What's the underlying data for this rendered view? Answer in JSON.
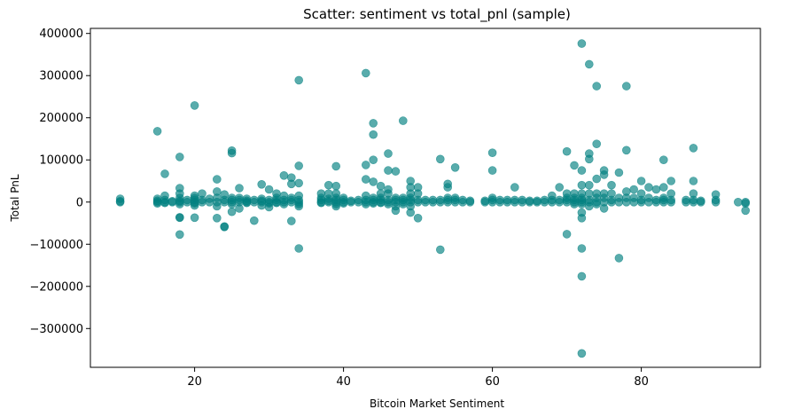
{
  "chart_data": {
    "type": "scatter",
    "title": "Scatter: sentiment vs total_pnl (sample)",
    "xlabel": "Bitcoin Market Sentiment",
    "ylabel": "Total PnL",
    "xlim": [
      6,
      96
    ],
    "ylim": [
      -392000,
      412000
    ],
    "xticks": [
      20,
      40,
      60,
      80
    ],
    "yticks": [
      -300000,
      -200000,
      -100000,
      0,
      100000,
      200000,
      300000,
      400000
    ],
    "xtick_labels": [
      "20",
      "40",
      "60",
      "80"
    ],
    "ytick_labels": [
      "−300000",
      "−200000",
      "−100000",
      "0",
      "100000",
      "200000",
      "300000",
      "400000"
    ],
    "grid": false,
    "point_color": "#008080",
    "point_alpha": 0.65,
    "points": [
      [
        10,
        8000
      ],
      [
        10,
        2000
      ],
      [
        10,
        0
      ],
      [
        15,
        168000
      ],
      [
        15,
        8000
      ],
      [
        15,
        3000
      ],
      [
        15,
        0
      ],
      [
        15,
        -3000
      ],
      [
        16,
        67000
      ],
      [
        16,
        15000
      ],
      [
        16,
        5000
      ],
      [
        16,
        0
      ],
      [
        16,
        -2000
      ],
      [
        17,
        2000
      ],
      [
        17,
        0
      ],
      [
        18,
        107000
      ],
      [
        18,
        33000
      ],
      [
        18,
        20000
      ],
      [
        18,
        10000
      ],
      [
        18,
        3000
      ],
      [
        18,
        0
      ],
      [
        18,
        -5000
      ],
      [
        18,
        -36000
      ],
      [
        18,
        -37000
      ],
      [
        18,
        -77000
      ],
      [
        19,
        5000
      ],
      [
        19,
        0
      ],
      [
        20,
        229000
      ],
      [
        20,
        15000
      ],
      [
        20,
        10000
      ],
      [
        20,
        5000
      ],
      [
        20,
        0
      ],
      [
        20,
        -3000
      ],
      [
        20,
        -8000
      ],
      [
        20,
        -37000
      ],
      [
        21,
        20000
      ],
      [
        21,
        5000
      ],
      [
        21,
        0
      ],
      [
        22,
        8000
      ],
      [
        22,
        0
      ],
      [
        23,
        54000
      ],
      [
        23,
        25000
      ],
      [
        23,
        10000
      ],
      [
        23,
        0
      ],
      [
        23,
        -10000
      ],
      [
        23,
        -38000
      ],
      [
        24,
        18000
      ],
      [
        24,
        5000
      ],
      [
        24,
        0
      ],
      [
        24,
        -58000
      ],
      [
        24,
        -59000
      ],
      [
        25,
        122000
      ],
      [
        25,
        116000
      ],
      [
        25,
        10000
      ],
      [
        25,
        5000
      ],
      [
        25,
        0
      ],
      [
        25,
        -5000
      ],
      [
        25,
        -23000
      ],
      [
        26,
        33000
      ],
      [
        26,
        10000
      ],
      [
        26,
        5000
      ],
      [
        26,
        0
      ],
      [
        26,
        -15000
      ],
      [
        27,
        8000
      ],
      [
        27,
        3000
      ],
      [
        27,
        0
      ],
      [
        27,
        -2000
      ],
      [
        28,
        5000
      ],
      [
        28,
        0
      ],
      [
        28,
        -44000
      ],
      [
        29,
        42000
      ],
      [
        29,
        8000
      ],
      [
        29,
        3000
      ],
      [
        29,
        0
      ],
      [
        29,
        -8000
      ],
      [
        30,
        30000
      ],
      [
        30,
        5000
      ],
      [
        30,
        0
      ],
      [
        30,
        -3000
      ],
      [
        30,
        -12000
      ],
      [
        31,
        20000
      ],
      [
        31,
        10000
      ],
      [
        31,
        5000
      ],
      [
        31,
        0
      ],
      [
        31,
        -2000
      ],
      [
        32,
        63000
      ],
      [
        32,
        15000
      ],
      [
        32,
        5000
      ],
      [
        32,
        0
      ],
      [
        32,
        -5000
      ],
      [
        33,
        58000
      ],
      [
        33,
        43000
      ],
      [
        33,
        10000
      ],
      [
        33,
        5000
      ],
      [
        33,
        0
      ],
      [
        33,
        -45000
      ],
      [
        34,
        289000
      ],
      [
        34,
        86000
      ],
      [
        34,
        45000
      ],
      [
        34,
        15000
      ],
      [
        34,
        5000
      ],
      [
        34,
        0
      ],
      [
        34,
        -5000
      ],
      [
        34,
        -10000
      ],
      [
        34,
        -110000
      ],
      [
        37,
        20000
      ],
      [
        37,
        10000
      ],
      [
        37,
        5000
      ],
      [
        37,
        0
      ],
      [
        37,
        -2000
      ],
      [
        38,
        40000
      ],
      [
        38,
        20000
      ],
      [
        38,
        8000
      ],
      [
        38,
        3000
      ],
      [
        38,
        0
      ],
      [
        39,
        85000
      ],
      [
        39,
        38000
      ],
      [
        39,
        20000
      ],
      [
        39,
        10000
      ],
      [
        39,
        5000
      ],
      [
        39,
        0
      ],
      [
        39,
        -5000
      ],
      [
        39,
        -10000
      ],
      [
        40,
        10000
      ],
      [
        40,
        5000
      ],
      [
        40,
        0
      ],
      [
        40,
        -3000
      ],
      [
        41,
        3000
      ],
      [
        41,
        0
      ],
      [
        42,
        5000
      ],
      [
        42,
        0
      ],
      [
        43,
        306000
      ],
      [
        43,
        88000
      ],
      [
        43,
        54000
      ],
      [
        43,
        15000
      ],
      [
        43,
        5000
      ],
      [
        43,
        0
      ],
      [
        43,
        -5000
      ],
      [
        44,
        187000
      ],
      [
        44,
        160000
      ],
      [
        44,
        100000
      ],
      [
        44,
        48000
      ],
      [
        44,
        10000
      ],
      [
        44,
        5000
      ],
      [
        44,
        0
      ],
      [
        44,
        -3000
      ],
      [
        45,
        38000
      ],
      [
        45,
        20000
      ],
      [
        45,
        10000
      ],
      [
        45,
        5000
      ],
      [
        45,
        0
      ],
      [
        45,
        -2000
      ],
      [
        46,
        115000
      ],
      [
        46,
        75000
      ],
      [
        46,
        30000
      ],
      [
        46,
        20000
      ],
      [
        46,
        5000
      ],
      [
        46,
        0
      ],
      [
        46,
        -5000
      ],
      [
        47,
        73000
      ],
      [
        47,
        10000
      ],
      [
        47,
        5000
      ],
      [
        47,
        0
      ],
      [
        47,
        -10000
      ],
      [
        47,
        -20000
      ],
      [
        48,
        193000
      ],
      [
        48,
        10000
      ],
      [
        48,
        5000
      ],
      [
        48,
        0
      ],
      [
        48,
        -5000
      ],
      [
        49,
        50000
      ],
      [
        49,
        35000
      ],
      [
        49,
        20000
      ],
      [
        49,
        10000
      ],
      [
        49,
        5000
      ],
      [
        49,
        0
      ],
      [
        49,
        -10000
      ],
      [
        49,
        -25000
      ],
      [
        50,
        35000
      ],
      [
        50,
        20000
      ],
      [
        50,
        5000
      ],
      [
        50,
        0
      ],
      [
        50,
        -38000
      ],
      [
        51,
        5000
      ],
      [
        51,
        0
      ],
      [
        52,
        5000
      ],
      [
        52,
        0
      ],
      [
        53,
        102000
      ],
      [
        53,
        5000
      ],
      [
        53,
        0
      ],
      [
        53,
        -113000
      ],
      [
        54,
        43000
      ],
      [
        54,
        35000
      ],
      [
        54,
        10000
      ],
      [
        54,
        5000
      ],
      [
        54,
        0
      ],
      [
        55,
        82000
      ],
      [
        55,
        10000
      ],
      [
        55,
        5000
      ],
      [
        55,
        0
      ],
      [
        56,
        5000
      ],
      [
        56,
        0
      ],
      [
        57,
        3000
      ],
      [
        57,
        0
      ],
      [
        59,
        3000
      ],
      [
        59,
        0
      ],
      [
        60,
        117000
      ],
      [
        60,
        75000
      ],
      [
        60,
        10000
      ],
      [
        60,
        5000
      ],
      [
        60,
        0
      ],
      [
        61,
        5000
      ],
      [
        61,
        0
      ],
      [
        62,
        5000
      ],
      [
        62,
        0
      ],
      [
        63,
        35000
      ],
      [
        63,
        5000
      ],
      [
        63,
        0
      ],
      [
        64,
        5000
      ],
      [
        64,
        0
      ],
      [
        65,
        3000
      ],
      [
        65,
        0
      ],
      [
        66,
        3000
      ],
      [
        66,
        0
      ],
      [
        67,
        5000
      ],
      [
        67,
        0
      ],
      [
        68,
        15000
      ],
      [
        68,
        5000
      ],
      [
        68,
        0
      ],
      [
        69,
        35000
      ],
      [
        69,
        5000
      ],
      [
        69,
        0
      ],
      [
        70,
        120000
      ],
      [
        70,
        20000
      ],
      [
        70,
        10000
      ],
      [
        70,
        5000
      ],
      [
        70,
        0
      ],
      [
        70,
        -76000
      ],
      [
        71,
        87000
      ],
      [
        71,
        20000
      ],
      [
        71,
        10000
      ],
      [
        71,
        5000
      ],
      [
        71,
        0
      ],
      [
        71,
        -5000
      ],
      [
        72,
        376000
      ],
      [
        72,
        75000
      ],
      [
        72,
        40000
      ],
      [
        72,
        20000
      ],
      [
        72,
        10000
      ],
      [
        72,
        5000
      ],
      [
        72,
        0
      ],
      [
        72,
        -5000
      ],
      [
        72,
        -25000
      ],
      [
        72,
        -38000
      ],
      [
        72,
        -110000
      ],
      [
        72,
        -176000
      ],
      [
        72,
        -359000
      ],
      [
        73,
        327000
      ],
      [
        73,
        115000
      ],
      [
        73,
        102000
      ],
      [
        73,
        40000
      ],
      [
        73,
        20000
      ],
      [
        73,
        5000
      ],
      [
        73,
        0
      ],
      [
        73,
        -10000
      ],
      [
        74,
        275000
      ],
      [
        74,
        138000
      ],
      [
        74,
        55000
      ],
      [
        74,
        20000
      ],
      [
        74,
        10000
      ],
      [
        74,
        0
      ],
      [
        74,
        -5000
      ],
      [
        75,
        75000
      ],
      [
        75,
        65000
      ],
      [
        75,
        20000
      ],
      [
        75,
        10000
      ],
      [
        75,
        0
      ],
      [
        75,
        -15000
      ],
      [
        76,
        40000
      ],
      [
        76,
        20000
      ],
      [
        76,
        5000
      ],
      [
        76,
        0
      ],
      [
        77,
        70000
      ],
      [
        77,
        10000
      ],
      [
        77,
        0
      ],
      [
        77,
        -133000
      ],
      [
        78,
        275000
      ],
      [
        78,
        123000
      ],
      [
        78,
        25000
      ],
      [
        78,
        10000
      ],
      [
        78,
        0
      ],
      [
        79,
        30000
      ],
      [
        79,
        10000
      ],
      [
        79,
        0
      ],
      [
        80,
        50000
      ],
      [
        80,
        20000
      ],
      [
        80,
        5000
      ],
      [
        80,
        0
      ],
      [
        81,
        35000
      ],
      [
        81,
        10000
      ],
      [
        81,
        0
      ],
      [
        82,
        30000
      ],
      [
        82,
        5000
      ],
      [
        82,
        0
      ],
      [
        83,
        100000
      ],
      [
        83,
        35000
      ],
      [
        83,
        10000
      ],
      [
        83,
        5000
      ],
      [
        83,
        0
      ],
      [
        84,
        50000
      ],
      [
        84,
        20000
      ],
      [
        84,
        5000
      ],
      [
        84,
        0
      ],
      [
        86,
        5000
      ],
      [
        86,
        0
      ],
      [
        87,
        128000
      ],
      [
        87,
        50000
      ],
      [
        87,
        20000
      ],
      [
        87,
        5000
      ],
      [
        87,
        0
      ],
      [
        88,
        3000
      ],
      [
        88,
        0
      ],
      [
        90,
        18000
      ],
      [
        90,
        5000
      ],
      [
        90,
        0
      ],
      [
        93,
        0
      ],
      [
        94,
        0
      ],
      [
        94,
        -3000
      ],
      [
        94,
        -20000
      ]
    ]
  }
}
